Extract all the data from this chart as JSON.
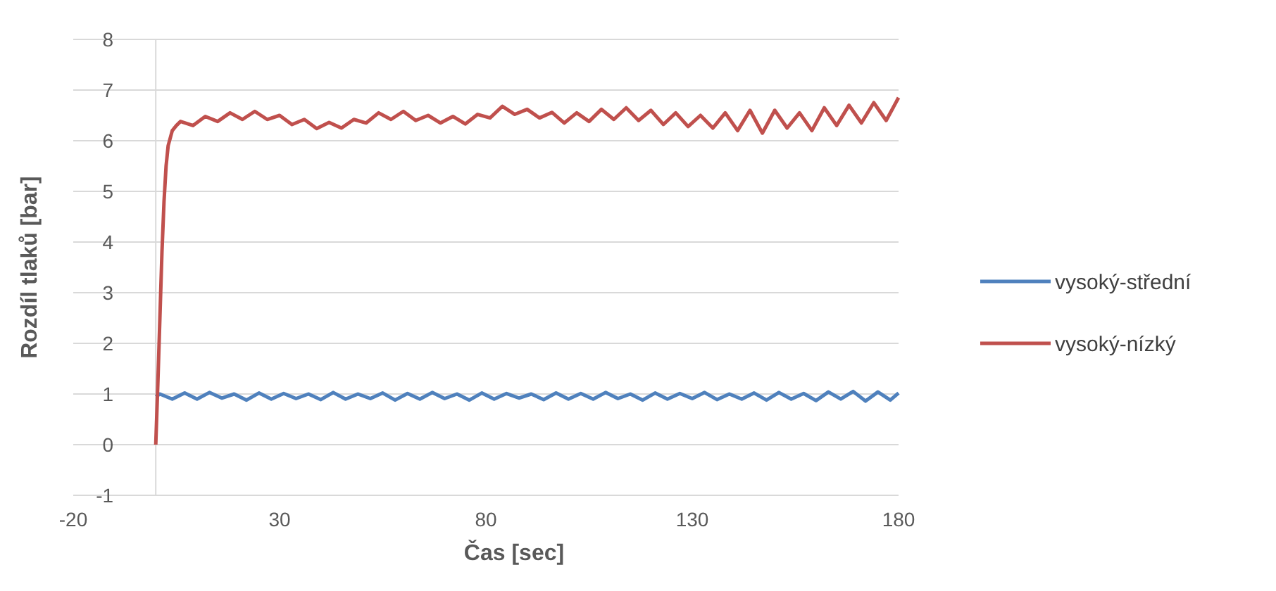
{
  "chart_data": {
    "type": "line",
    "xlabel": "Čas [sec]",
    "ylabel": "Rozdíl tlaků [bar]",
    "xlim": [
      -20,
      180
    ],
    "xticks": [
      -20,
      30,
      80,
      130,
      180
    ],
    "ylim": [
      -1,
      8
    ],
    "yticks": [
      -1,
      0,
      1,
      2,
      3,
      4,
      5,
      6,
      7,
      8
    ],
    "grid": "y",
    "legend": "right",
    "marker": "none",
    "line_style": "solid",
    "series": [
      {
        "name": "vysoký-střední",
        "color": "#4f81bd",
        "x": [
          0,
          1,
          4,
          7,
          10,
          13,
          16,
          19,
          22,
          25,
          28,
          31,
          34,
          37,
          40,
          43,
          46,
          49,
          52,
          55,
          58,
          61,
          64,
          67,
          70,
          73,
          76,
          79,
          82,
          85,
          88,
          91,
          94,
          97,
          100,
          103,
          106,
          109,
          112,
          115,
          118,
          121,
          124,
          127,
          130,
          133,
          136,
          139,
          142,
          145,
          148,
          151,
          154,
          157,
          160,
          163,
          166,
          169,
          172,
          175,
          178,
          180
        ],
        "values": [
          0.95,
          1.0,
          0.9,
          1.02,
          0.9,
          1.03,
          0.92,
          1.0,
          0.88,
          1.02,
          0.9,
          1.01,
          0.91,
          1.0,
          0.89,
          1.03,
          0.9,
          1.0,
          0.91,
          1.02,
          0.88,
          1.01,
          0.9,
          1.03,
          0.91,
          1.0,
          0.88,
          1.02,
          0.9,
          1.01,
          0.92,
          1.0,
          0.89,
          1.02,
          0.9,
          1.01,
          0.9,
          1.03,
          0.91,
          1.0,
          0.88,
          1.02,
          0.9,
          1.01,
          0.91,
          1.03,
          0.89,
          1.0,
          0.9,
          1.02,
          0.88,
          1.03,
          0.9,
          1.01,
          0.87,
          1.04,
          0.9,
          1.05,
          0.86,
          1.04,
          0.88,
          1.02
        ]
      },
      {
        "name": "vysoký-nízký",
        "color": "#c0504d",
        "x": [
          0,
          0.5,
          1,
          1.5,
          2,
          2.5,
          3,
          4,
          5,
          6,
          9,
          12,
          15,
          18,
          21,
          24,
          27,
          30,
          33,
          36,
          39,
          42,
          45,
          48,
          51,
          54,
          57,
          60,
          63,
          66,
          69,
          72,
          75,
          78,
          81,
          84,
          87,
          90,
          93,
          96,
          99,
          102,
          105,
          108,
          111,
          114,
          117,
          120,
          123,
          126,
          129,
          132,
          135,
          138,
          141,
          144,
          147,
          150,
          153,
          156,
          159,
          162,
          165,
          168,
          171,
          174,
          177,
          180
        ],
        "values": [
          0,
          1.2,
          2.5,
          3.8,
          4.8,
          5.5,
          5.9,
          6.2,
          6.3,
          6.38,
          6.3,
          6.48,
          6.38,
          6.55,
          6.42,
          6.58,
          6.42,
          6.5,
          6.32,
          6.42,
          6.24,
          6.36,
          6.25,
          6.42,
          6.35,
          6.55,
          6.42,
          6.58,
          6.4,
          6.5,
          6.35,
          6.48,
          6.33,
          6.52,
          6.45,
          6.68,
          6.52,
          6.62,
          6.45,
          6.56,
          6.35,
          6.55,
          6.38,
          6.62,
          6.42,
          6.65,
          6.4,
          6.6,
          6.32,
          6.55,
          6.28,
          6.5,
          6.25,
          6.55,
          6.2,
          6.6,
          6.15,
          6.6,
          6.25,
          6.55,
          6.2,
          6.65,
          6.3,
          6.7,
          6.35,
          6.75,
          6.4,
          6.85
        ]
      }
    ]
  }
}
